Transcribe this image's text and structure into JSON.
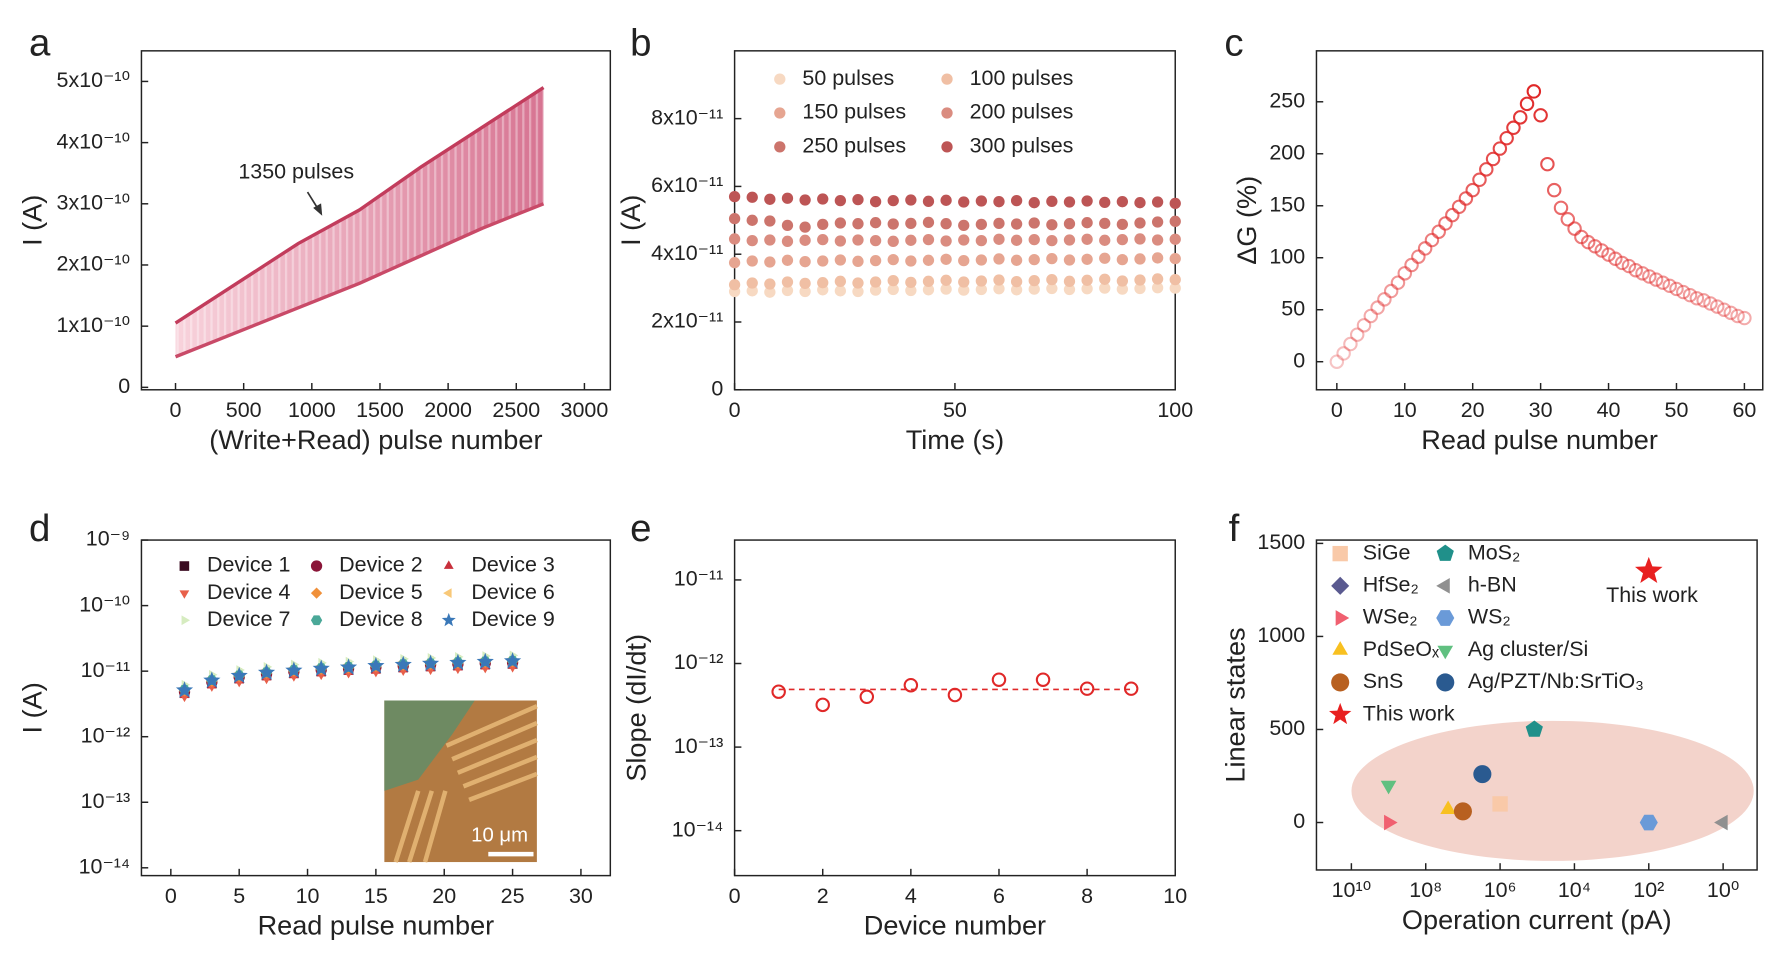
{
  "chart_data": [
    {
      "panel": "a",
      "type": "band",
      "xlabel": "(Write+Read) pulse number",
      "ylabel": "I (A)",
      "annotation": "1350 pulses",
      "x": [
        0,
        450,
        900,
        1350,
        1800,
        2250,
        2700
      ],
      "series": [
        {
          "color": "#c23c5c",
          "values": [
            1.05e-10,
            1.7e-10,
            2.35e-10,
            2.9e-10,
            3.6e-10,
            4.25e-10,
            4.9e-10
          ]
        },
        {
          "color": "#c94a68",
          "values": [
            5e-11,
            9e-11,
            1.3e-10,
            1.7e-10,
            2.15e-10,
            2.6e-10,
            3e-10
          ]
        }
      ],
      "xlim": [
        -250,
        3190
      ],
      "ylim": [
        -4e-12,
        5.5e-10
      ],
      "xticks": [
        0,
        500,
        1000,
        1500,
        2000,
        2500,
        3000
      ],
      "yticks": [
        0,
        {
          "value": 1e-10,
          "label": "1x10⁻¹⁰"
        },
        {
          "value": 2e-10,
          "label": "2x10⁻¹⁰"
        },
        {
          "value": 3e-10,
          "label": "3x10⁻¹⁰"
        },
        {
          "value": 4e-10,
          "label": "4x10⁻¹⁰"
        },
        {
          "value": 5e-10,
          "label": "5x10⁻¹⁰"
        }
      ]
    },
    {
      "panel": "b",
      "type": "scatter",
      "xlabel": "Time (s)",
      "ylabel": "I (A)",
      "legend_columns": 2,
      "legend_fill": "row",
      "x": [
        0,
        4,
        8,
        12,
        16,
        20,
        24,
        28,
        32,
        36,
        40,
        44,
        48,
        52,
        56,
        60,
        64,
        68,
        72,
        76,
        80,
        84,
        88,
        92,
        96,
        100
      ],
      "series": [
        {
          "name": "50 pulses",
          "color": "#f7d9c2",
          "marker": "circle",
          "values": [
            2.9e-11,
            2.92e-11,
            2.88e-11,
            2.93e-11,
            2.9e-11,
            2.95e-11,
            2.92e-11,
            2.9e-11,
            2.94e-11,
            2.96e-11,
            2.93e-11,
            2.95e-11,
            2.97e-11,
            2.94e-11,
            2.96e-11,
            2.98e-11,
            2.95e-11,
            2.97e-11,
            2.99e-11,
            2.96e-11,
            2.98e-11,
            3e-11,
            2.97e-11,
            2.99e-11,
            3.01e-11,
            3e-11
          ]
        },
        {
          "name": "100 pulses",
          "color": "#f0bfa4",
          "marker": "circle",
          "values": [
            3.1e-11,
            3.15e-11,
            3.12e-11,
            3.18e-11,
            3.14e-11,
            3.16e-11,
            3.2e-11,
            3.15e-11,
            3.18e-11,
            3.22e-11,
            3.17e-11,
            3.2e-11,
            3.23e-11,
            3.18e-11,
            3.21e-11,
            3.24e-11,
            3.19e-11,
            3.22e-11,
            3.25e-11,
            3.2e-11,
            3.23e-11,
            3.26e-11,
            3.21e-11,
            3.24e-11,
            3.27e-11,
            3.25e-11
          ]
        },
        {
          "name": "150 pulses",
          "color": "#e6a591",
          "marker": "circle",
          "values": [
            3.75e-11,
            3.8e-11,
            3.77e-11,
            3.82e-11,
            3.78e-11,
            3.8e-11,
            3.83e-11,
            3.79e-11,
            3.81e-11,
            3.84e-11,
            3.8e-11,
            3.82e-11,
            3.85e-11,
            3.81e-11,
            3.83e-11,
            3.86e-11,
            3.82e-11,
            3.84e-11,
            3.87e-11,
            3.83e-11,
            3.85e-11,
            3.88e-11,
            3.84e-11,
            3.86e-11,
            3.89e-11,
            3.87e-11
          ]
        },
        {
          "name": "200 pulses",
          "color": "#da8c80",
          "marker": "circle",
          "values": [
            4.45e-11,
            4.4e-11,
            4.42e-11,
            4.38e-11,
            4.41e-11,
            4.43e-11,
            4.39e-11,
            4.42e-11,
            4.4e-11,
            4.38e-11,
            4.41e-11,
            4.43e-11,
            4.39e-11,
            4.42e-11,
            4.4e-11,
            4.44e-11,
            4.41e-11,
            4.43e-11,
            4.4e-11,
            4.42e-11,
            4.44e-11,
            4.41e-11,
            4.43e-11,
            4.45e-11,
            4.42e-11,
            4.44e-11
          ]
        },
        {
          "name": "250 pulses",
          "color": "#cc746c",
          "marker": "circle",
          "values": [
            5.05e-11,
            5e-11,
            4.98e-11,
            4.85e-11,
            4.8e-11,
            4.88e-11,
            4.92e-11,
            4.9e-11,
            4.93e-11,
            4.89e-11,
            4.91e-11,
            4.94e-11,
            4.9e-11,
            4.85e-11,
            4.88e-11,
            4.91e-11,
            4.89e-11,
            4.92e-11,
            4.87e-11,
            4.9e-11,
            4.93e-11,
            4.91e-11,
            4.88e-11,
            4.92e-11,
            4.95e-11,
            4.97e-11
          ]
        },
        {
          "name": "300 pulses",
          "color": "#bd5555",
          "marker": "circle",
          "values": [
            5.7e-11,
            5.68e-11,
            5.62e-11,
            5.65e-11,
            5.6e-11,
            5.63e-11,
            5.58e-11,
            5.61e-11,
            5.55e-11,
            5.58e-11,
            5.6e-11,
            5.56e-11,
            5.59e-11,
            5.54e-11,
            5.57e-11,
            5.55e-11,
            5.58e-11,
            5.52e-11,
            5.56e-11,
            5.54e-11,
            5.57e-11,
            5.53e-11,
            5.55e-11,
            5.52e-11,
            5.54e-11,
            5.5e-11
          ]
        }
      ],
      "xlim": [
        0,
        100
      ],
      "ylim": [
        0,
        1e-10
      ],
      "xticks": [
        0,
        50,
        100
      ],
      "yticks": [
        0,
        {
          "value": 2e-11,
          "label": "2x10⁻¹¹"
        },
        {
          "value": 4e-11,
          "label": "4x10⁻¹¹"
        },
        {
          "value": 6e-11,
          "label": "6x10⁻¹¹"
        },
        {
          "value": 8e-11,
          "label": "8x10⁻¹¹"
        }
      ]
    },
    {
      "panel": "c",
      "type": "scatter",
      "xlabel": "Read pulse number",
      "ylabel": "ΔG (%)",
      "fade": true,
      "x": [
        0,
        1,
        2,
        3,
        4,
        5,
        6,
        7,
        8,
        9,
        10,
        11,
        12,
        13,
        14,
        15,
        16,
        17,
        18,
        19,
        20,
        21,
        22,
        23,
        24,
        25,
        26,
        27,
        28,
        29,
        30,
        31,
        32,
        33,
        34,
        35,
        36,
        37,
        38,
        39,
        40,
        41,
        42,
        43,
        44,
        45,
        46,
        47,
        48,
        49,
        50,
        51,
        52,
        53,
        54,
        55,
        56,
        57,
        58,
        59,
        60
      ],
      "series": [
        {
          "color": "#e02828",
          "marker": "circle",
          "filled": false,
          "values": [
            0,
            8,
            17,
            26,
            35,
            44,
            52,
            60,
            68,
            76,
            85,
            93,
            101,
            109,
            117,
            125,
            133,
            141,
            149,
            157,
            165,
            175,
            185,
            195,
            205,
            215,
            225,
            235,
            248,
            260,
            237,
            190,
            165,
            148,
            137,
            128,
            120,
            115,
            111,
            107,
            103,
            99,
            95,
            92,
            88,
            85,
            82,
            79,
            76,
            73,
            70,
            67,
            64,
            61,
            59,
            56,
            53,
            50,
            47,
            44,
            42
          ]
        }
      ],
      "xlim": [
        -3,
        62.7
      ],
      "ylim": [
        -27,
        299
      ],
      "xticks": [
        0,
        10,
        20,
        30,
        40,
        50,
        60
      ],
      "yticks": [
        0,
        50,
        100,
        150,
        200,
        250
      ]
    },
    {
      "panel": "d",
      "type": "scatter",
      "xlabel": "Read pulse number",
      "ylabel": "I (A)",
      "yscale": "log",
      "legend_columns": 3,
      "legend_fill": "row",
      "scale_bar": "10 μm",
      "x": [
        1,
        3,
        5,
        7,
        9,
        11,
        13,
        15,
        17,
        19,
        21,
        23,
        25
      ],
      "series": [
        {
          "name": "Device 1",
          "color": "#3a0a20",
          "marker": "square",
          "values": [
            4.6e-12,
            6.5e-12,
            7.7e-12,
            8.6e-12,
            9.3e-12,
            9.9e-12,
            1.04e-11,
            1.09e-11,
            1.14e-11,
            1.18e-11,
            1.22e-11,
            1.26e-11,
            1.29e-11
          ]
        },
        {
          "name": "Device 2",
          "color": "#8a1538",
          "marker": "circle",
          "values": [
            4.8e-12,
            6.8e-12,
            8.1e-12,
            9e-12,
            9.8e-12,
            1.04e-11,
            1.09e-11,
            1.14e-11,
            1.2e-11,
            1.24e-11,
            1.28e-11,
            1.32e-11,
            1.35e-11
          ]
        },
        {
          "name": "Device 3",
          "color": "#c8303c",
          "marker": "triangle-up",
          "values": [
            4.3e-12,
            6e-12,
            7.2e-12,
            8e-12,
            8.6e-12,
            9.2e-12,
            9.7e-12,
            1.01e-11,
            1.06e-11,
            1.1e-11,
            1.13e-11,
            1.17e-11,
            1.2e-11
          ]
        },
        {
          "name": "Device 4",
          "color": "#e8604a",
          "marker": "triangle-down",
          "values": [
            4.1e-12,
            5.9e-12,
            6.9e-12,
            7.7e-12,
            8.4e-12,
            8.9e-12,
            9.4e-12,
            9.8e-12,
            1.03e-11,
            1.06e-11,
            1.1e-11,
            1.13e-11,
            1.16e-11
          ]
        },
        {
          "name": "Device 5",
          "color": "#f0903a",
          "marker": "diamond",
          "values": [
            5e-12,
            7e-12,
            8.3e-12,
            9.3e-12,
            1e-11,
            1.07e-11,
            1.12e-11,
            1.18e-11,
            1.23e-11,
            1.27e-11,
            1.32e-11,
            1.36e-11,
            1.39e-11
          ]
        },
        {
          "name": "Device 6",
          "color": "#f8c878",
          "marker": "triangle-left",
          "values": [
            5.6e-12,
            7.9e-12,
            9.4e-12,
            1.05e-11,
            1.13e-11,
            1.21e-11,
            1.27e-11,
            1.33e-11,
            1.39e-11,
            1.44e-11,
            1.49e-11,
            1.54e-11,
            1.57e-11
          ]
        },
        {
          "name": "Device 7",
          "color": "#d6ecc0",
          "marker": "triangle-right",
          "values": [
            6.2e-12,
            8.8e-12,
            1.04e-11,
            1.16e-11,
            1.26e-11,
            1.34e-11,
            1.4e-11,
            1.47e-11,
            1.54e-11,
            1.59e-11,
            1.65e-11,
            1.7e-11,
            1.74e-11
          ]
        },
        {
          "name": "Device 8",
          "color": "#4aa898",
          "marker": "hexagon",
          "values": [
            5.2e-12,
            7.3e-12,
            8.6e-12,
            9.6e-12,
            1.04e-11,
            1.11e-11,
            1.16e-11,
            1.22e-11,
            1.28e-11,
            1.32e-11,
            1.37e-11,
            1.41e-11,
            1.44e-11
          ]
        },
        {
          "name": "Device 9",
          "color": "#3a78b8",
          "marker": "star",
          "values": [
            5.1e-12,
            7.2e-12,
            8.5e-12,
            9.5e-12,
            1.02e-11,
            1.09e-11,
            1.14e-11,
            1.2e-11,
            1.25e-11,
            1.3e-11,
            1.34e-11,
            1.39e-11,
            1.42e-11
          ]
        }
      ],
      "xlim": [
        -2.15,
        32.15
      ],
      "ylim": [
        7.6e-15,
        1e-09
      ],
      "xticks": [
        0,
        5,
        10,
        15,
        20,
        25,
        30
      ],
      "yticks": [
        {
          "value": 1e-14,
          "label": "10⁻¹⁴"
        },
        {
          "value": 1e-13,
          "label": "10⁻¹³"
        },
        {
          "value": 1e-12,
          "label": "10⁻¹²"
        },
        {
          "value": 1e-11,
          "label": "10⁻¹¹"
        },
        {
          "value": 1e-10,
          "label": "10⁻¹⁰"
        },
        {
          "value": 1e-09,
          "label": "10⁻⁹"
        }
      ]
    },
    {
      "panel": "e",
      "type": "scatter",
      "xlabel": "Device number",
      "ylabel": "Slope (dI/dt)",
      "yscale": "log",
      "reference_line": 4.9e-13,
      "x": [
        1,
        2,
        3,
        4,
        5,
        6,
        7,
        8,
        9
      ],
      "series": [
        {
          "color": "#e02828",
          "marker": "circle",
          "filled": false,
          "values": [
            4.6e-13,
            3.2e-13,
            4e-13,
            5.5e-13,
            4.2e-13,
            6.4e-13,
            6.4e-13,
            5e-13,
            5e-13
          ]
        }
      ],
      "xlim": [
        0,
        10
      ],
      "ylim": [
        2.9e-15,
        3e-11
      ],
      "xticks": [
        0,
        2,
        4,
        6,
        8,
        10
      ],
      "yticks": [
        {
          "value": 1e-14,
          "label": "10⁻¹⁴"
        },
        {
          "value": 1e-13,
          "label": "10⁻¹³"
        },
        {
          "value": 1e-12,
          "label": "10⁻¹²"
        },
        {
          "value": 1e-11,
          "label": "10⁻¹¹"
        }
      ]
    },
    {
      "panel": "f",
      "type": "scatter",
      "xlabel": "Operation current (pA)",
      "ylabel": "Linear states",
      "xscale": "log",
      "legend_columns": 2,
      "legend_fill": "column",
      "annotation": "This work",
      "series": [
        {
          "name": "SiGe",
          "color": "#f9c9a8",
          "marker": "square",
          "x": [
            1000000.0
          ],
          "values": [
            100
          ]
        },
        {
          "name": "HfSe₂",
          "color": "#5a5a90",
          "marker": "diamond",
          "x": [
            10000000.0
          ],
          "values": [
            60
          ]
        },
        {
          "name": "WSe₂",
          "color": "#f06070",
          "marker": "triangle-right",
          "x": [
            1000000000.0
          ],
          "values": [
            0
          ]
        },
        {
          "name": "PdSeOₓ",
          "color": "#f8c020",
          "marker": "triangle-up",
          "x": [
            25000000.0
          ],
          "values": [
            70
          ]
        },
        {
          "name": "SnS",
          "color": "#b86020",
          "marker": "circle",
          "x": [
            10000000.0
          ],
          "values": [
            60
          ]
        },
        {
          "name": "This work",
          "color": "#e82020",
          "marker": "star",
          "x": [
            100
          ],
          "values": [
            1350
          ]
        },
        {
          "name": "MoS₂",
          "color": "#20908a",
          "marker": "pentagon",
          "x": [
            120000.0
          ],
          "values": [
            500
          ]
        },
        {
          "name": "h-BN",
          "color": "#909090",
          "marker": "triangle-left",
          "x": [
            1
          ],
          "values": [
            0
          ]
        },
        {
          "name": "WS₂",
          "color": "#6a9ad8",
          "marker": "hexagon",
          "x": [
            100
          ],
          "values": [
            0
          ]
        },
        {
          "name": "Ag cluster/Si",
          "color": "#60c080",
          "marker": "triangle-down",
          "x": [
            1000000000.0
          ],
          "values": [
            200
          ]
        },
        {
          "name": "Ag/PZT/Nb:SrTiO₃",
          "color": "#2a5a90",
          "marker": "circle",
          "x": [
            3000000.0
          ],
          "values": [
            260
          ]
        }
      ],
      "xlim": [
        87000000000.0,
        0.122
      ],
      "ylim": [
        -255,
        1518
      ],
      "xticks": [
        {
          "value": 10000000000.0,
          "label": "10¹⁰"
        },
        {
          "value": 100000000.0,
          "label": "10⁸"
        },
        {
          "value": 1000000.0,
          "label": "10⁶"
        },
        {
          "value": 10000.0,
          "label": "10⁴"
        },
        {
          "value": 100,
          "label": "10²"
        },
        {
          "value": 1,
          "label": "10⁰"
        }
      ],
      "yticks": [
        0,
        500,
        1000,
        1500
      ]
    }
  ]
}
